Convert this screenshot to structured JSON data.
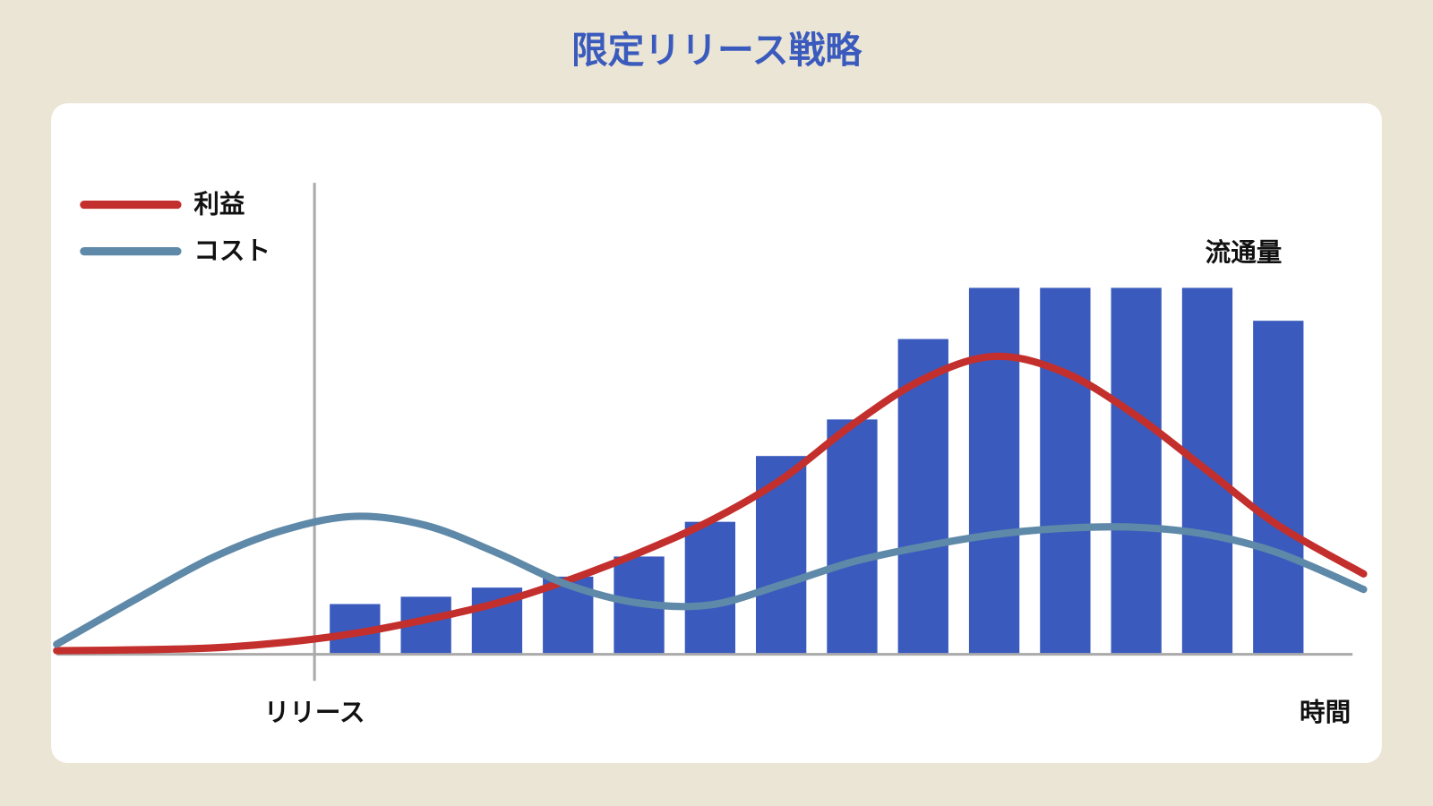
{
  "chart_data": {
    "type": "combo",
    "title": "限定リリース戦略",
    "x_label": "時間",
    "xlim": [
      -3.2,
      15.2
    ],
    "ylim": [
      0,
      100
    ],
    "x": [
      -3.2,
      -2,
      -1,
      0,
      1,
      2,
      3,
      4,
      5,
      6,
      7,
      8,
      9,
      10,
      11,
      12,
      13,
      14,
      15.2
    ],
    "series": [
      {
        "name": "利益",
        "color": "#c32f2c",
        "values": [
          0.75,
          1,
          1.5,
          3,
          5.5,
          9.25,
          13.75,
          20,
          27.5,
          36.25,
          47.5,
          62.5,
          75,
          81.25,
          76.75,
          65,
          50,
          35,
          21.75
        ]
      },
      {
        "name": "コスト",
        "color": "#5f89a8",
        "values": [
          2.5,
          15.75,
          26.25,
          33.75,
          37.5,
          35,
          27.5,
          18.75,
          13.75,
          13.25,
          18.75,
          25,
          29.25,
          32.5,
          34.25,
          34.5,
          32.5,
          27.5,
          17.5
        ]
      }
    ],
    "bars": {
      "label": "流通量",
      "color": "#3a5bbd",
      "x": [
        1,
        2,
        3,
        4,
        5,
        6,
        7,
        8,
        9,
        10,
        11,
        12,
        13,
        14
      ],
      "values": [
        13.5,
        15.5,
        18,
        21,
        26.5,
        36,
        54,
        64,
        86,
        100,
        100,
        100,
        100,
        91
      ]
    },
    "annotations": [
      {
        "text": "リリース",
        "x": 0.43
      }
    ]
  }
}
